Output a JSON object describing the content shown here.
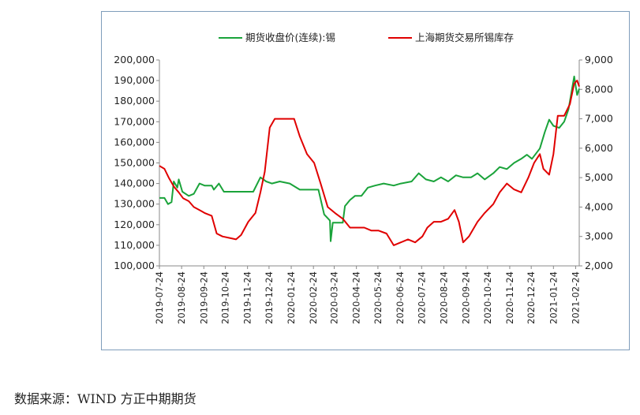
{
  "source_note": "数据来源：WIND  方正中期期货",
  "chart_data": {
    "type": "line",
    "legend_position": "top",
    "grid": false,
    "ylim_left": [
      100000,
      200000
    ],
    "ylim_right": [
      2000,
      9000
    ],
    "left_ticks": [
      "100,000",
      "110,000",
      "120,000",
      "130,000",
      "140,000",
      "150,000",
      "160,000",
      "170,000",
      "180,000",
      "190,000",
      "200,000"
    ],
    "right_ticks": [
      "2,000",
      "3,000",
      "4,000",
      "5,000",
      "6,000",
      "7,000",
      "8,000",
      "9,000"
    ],
    "x_ticks": [
      "2019-07-24",
      "2019-08-24",
      "2019-09-24",
      "2019-10-24",
      "2019-11-24",
      "2019-12-24",
      "2020-01-24",
      "2020-02-24",
      "2020-03-24",
      "2020-04-24",
      "2020-05-24",
      "2020-06-24",
      "2020-07-24",
      "2020-08-24",
      "2020-09-24",
      "2020-10-24",
      "2020-11-24",
      "2020-12-24",
      "2021-01-24",
      "2021-02-24"
    ],
    "series": [
      {
        "name": "期货收盘价(连续):锡",
        "axis": "left",
        "color": "#1aa33a",
        "points": [
          [
            "2019-07-24",
            133000
          ],
          [
            "2019-07-31",
            133000
          ],
          [
            "2019-08-05",
            130000
          ],
          [
            "2019-08-10",
            131000
          ],
          [
            "2019-08-13",
            141000
          ],
          [
            "2019-08-18",
            138000
          ],
          [
            "2019-08-20",
            142000
          ],
          [
            "2019-08-25",
            136000
          ],
          [
            "2019-09-03",
            134000
          ],
          [
            "2019-09-10",
            135000
          ],
          [
            "2019-09-18",
            140000
          ],
          [
            "2019-09-25",
            139000
          ],
          [
            "2019-10-05",
            139000
          ],
          [
            "2019-10-08",
            137000
          ],
          [
            "2019-10-15",
            140000
          ],
          [
            "2019-10-22",
            136000
          ],
          [
            "2019-11-05",
            136000
          ],
          [
            "2019-11-20",
            136000
          ],
          [
            "2019-12-02",
            136000
          ],
          [
            "2019-12-12",
            143000
          ],
          [
            "2019-12-20",
            141000
          ],
          [
            "2019-12-28",
            140000
          ],
          [
            "2020-01-08",
            141000
          ],
          [
            "2020-01-22",
            140000
          ],
          [
            "2020-02-05",
            137000
          ],
          [
            "2020-02-20",
            137000
          ],
          [
            "2020-03-02",
            137000
          ],
          [
            "2020-03-10",
            125000
          ],
          [
            "2020-03-18",
            122000
          ],
          [
            "2020-03-19",
            112000
          ],
          [
            "2020-03-22",
            121000
          ],
          [
            "2020-04-05",
            121000
          ],
          [
            "2020-04-08",
            129000
          ],
          [
            "2020-04-15",
            132000
          ],
          [
            "2020-04-22",
            134000
          ],
          [
            "2020-05-01",
            134000
          ],
          [
            "2020-05-10",
            138000
          ],
          [
            "2020-05-20",
            139000
          ],
          [
            "2020-06-01",
            140000
          ],
          [
            "2020-06-15",
            139000
          ],
          [
            "2020-06-25",
            140000
          ],
          [
            "2020-07-10",
            141000
          ],
          [
            "2020-07-20",
            145000
          ],
          [
            "2020-07-30",
            142000
          ],
          [
            "2020-08-10",
            141000
          ],
          [
            "2020-08-20",
            143000
          ],
          [
            "2020-08-30",
            141000
          ],
          [
            "2020-09-10",
            144000
          ],
          [
            "2020-09-20",
            143000
          ],
          [
            "2020-10-01",
            143000
          ],
          [
            "2020-10-10",
            145000
          ],
          [
            "2020-10-20",
            142000
          ],
          [
            "2020-11-01",
            145000
          ],
          [
            "2020-11-10",
            148000
          ],
          [
            "2020-11-20",
            147000
          ],
          [
            "2020-11-30",
            150000
          ],
          [
            "2020-12-10",
            152000
          ],
          [
            "2020-12-18",
            154000
          ],
          [
            "2020-12-25",
            152000
          ],
          [
            "2021-01-05",
            157000
          ],
          [
            "2021-01-12",
            165000
          ],
          [
            "2021-01-18",
            171000
          ],
          [
            "2021-01-24",
            168000
          ],
          [
            "2021-02-01",
            167000
          ],
          [
            "2021-02-08",
            170000
          ],
          [
            "2021-02-14",
            176000
          ],
          [
            "2021-02-20",
            188000
          ],
          [
            "2021-02-22",
            192000
          ],
          [
            "2021-02-26",
            183000
          ],
          [
            "2021-03-01",
            186000
          ]
        ]
      },
      {
        "name": "上海期货交易所锡库存",
        "axis": "right",
        "color": "#e00000",
        "points": [
          [
            "2019-07-24",
            5400
          ],
          [
            "2019-07-31",
            5300
          ],
          [
            "2019-08-06",
            5000
          ],
          [
            "2019-08-13",
            4700
          ],
          [
            "2019-08-20",
            4500
          ],
          [
            "2019-08-26",
            4300
          ],
          [
            "2019-09-03",
            4200
          ],
          [
            "2019-09-10",
            4000
          ],
          [
            "2019-09-18",
            3900
          ],
          [
            "2019-09-25",
            3800
          ],
          [
            "2019-10-05",
            3700
          ],
          [
            "2019-10-12",
            3100
          ],
          [
            "2019-10-20",
            3000
          ],
          [
            "2019-10-30",
            2950
          ],
          [
            "2019-11-08",
            2900
          ],
          [
            "2019-11-15",
            3050
          ],
          [
            "2019-11-25",
            3500
          ],
          [
            "2019-12-05",
            3800
          ],
          [
            "2019-12-12",
            4500
          ],
          [
            "2019-12-18",
            5200
          ],
          [
            "2019-12-25",
            6700
          ],
          [
            "2020-01-01",
            7000
          ],
          [
            "2020-01-10",
            7000
          ],
          [
            "2020-01-20",
            7000
          ],
          [
            "2020-01-28",
            7000
          ],
          [
            "2020-02-05",
            6400
          ],
          [
            "2020-02-15",
            5800
          ],
          [
            "2020-02-25",
            5500
          ],
          [
            "2020-03-05",
            4800
          ],
          [
            "2020-03-15",
            4000
          ],
          [
            "2020-03-25",
            3800
          ],
          [
            "2020-04-05",
            3600
          ],
          [
            "2020-04-15",
            3300
          ],
          [
            "2020-04-25",
            3300
          ],
          [
            "2020-05-05",
            3300
          ],
          [
            "2020-05-15",
            3200
          ],
          [
            "2020-05-25",
            3200
          ],
          [
            "2020-06-05",
            3100
          ],
          [
            "2020-06-15",
            2700
          ],
          [
            "2020-06-25",
            2800
          ],
          [
            "2020-07-05",
            2900
          ],
          [
            "2020-07-15",
            2800
          ],
          [
            "2020-07-25",
            3000
          ],
          [
            "2020-08-01",
            3300
          ],
          [
            "2020-08-10",
            3500
          ],
          [
            "2020-08-20",
            3500
          ],
          [
            "2020-08-30",
            3600
          ],
          [
            "2020-09-08",
            3900
          ],
          [
            "2020-09-14",
            3500
          ],
          [
            "2020-09-20",
            2800
          ],
          [
            "2020-09-28",
            3000
          ],
          [
            "2020-10-10",
            3500
          ],
          [
            "2020-10-20",
            3800
          ],
          [
            "2020-11-01",
            4100
          ],
          [
            "2020-11-10",
            4500
          ],
          [
            "2020-11-20",
            4800
          ],
          [
            "2020-11-30",
            4600
          ],
          [
            "2020-12-10",
            4500
          ],
          [
            "2020-12-20",
            5000
          ],
          [
            "2020-12-28",
            5500
          ],
          [
            "2021-01-05",
            5800
          ],
          [
            "2021-01-10",
            5300
          ],
          [
            "2021-01-18",
            5100
          ],
          [
            "2021-01-24",
            5800
          ],
          [
            "2021-01-30",
            7100
          ],
          [
            "2021-02-08",
            7100
          ],
          [
            "2021-02-16",
            7500
          ],
          [
            "2021-02-22",
            8200
          ],
          [
            "2021-02-26",
            8300
          ],
          [
            "2021-03-01",
            8100
          ]
        ]
      }
    ]
  }
}
